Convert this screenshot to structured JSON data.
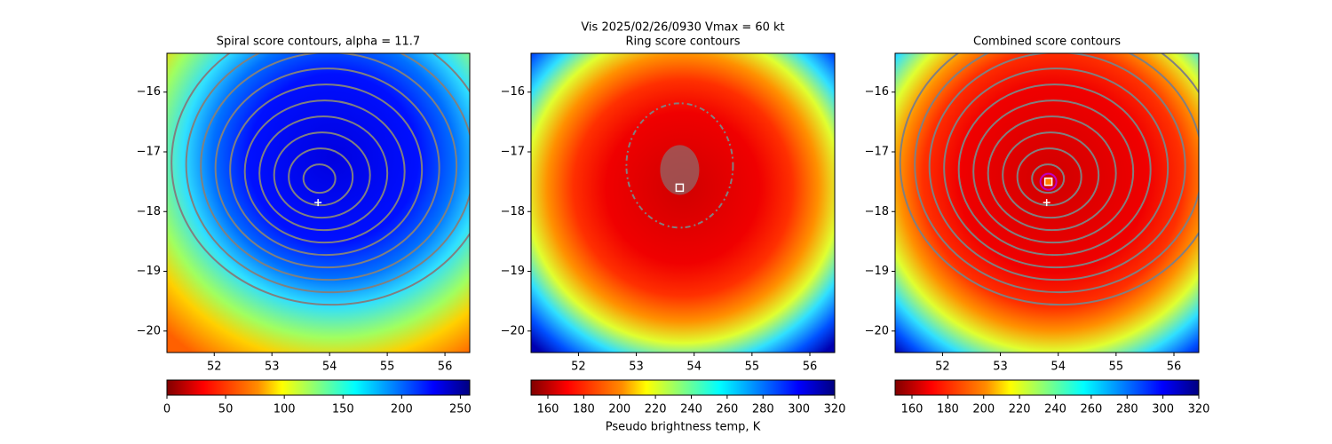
{
  "figure_title": "Vis  2025/02/26/0930    Vmax = 60 kt",
  "colorbar_label": "Pseudo brightness temp, K",
  "chart_data": [
    {
      "type": "image",
      "title": "Spiral score contours, alpha = 11.7",
      "xlim": [
        51.18,
        56.43
      ],
      "ylim": [
        -20.36,
        -15.35
      ],
      "xticks": [
        52,
        53,
        54,
        55,
        56
      ],
      "yticks": [
        {
          "value": -16,
          "label": "−16"
        },
        {
          "value": -17,
          "label": "−17"
        },
        {
          "value": -18,
          "label": "−18"
        },
        {
          "value": -19,
          "label": "−19"
        },
        {
          "value": -20,
          "label": "−20"
        }
      ],
      "cmap": "jet_r",
      "colorbar": {
        "lim": [
          0,
          258
        ],
        "ticks": [
          0,
          50,
          100,
          150,
          200,
          250
        ]
      },
      "markers": [
        {
          "x": 53.8,
          "y": -17.85,
          "marker": "plus",
          "color": "#ffffff"
        }
      ]
    },
    {
      "type": "image",
      "title": "Ring score contours",
      "xlim": [
        51.18,
        56.43
      ],
      "ylim": [
        -20.36,
        -15.35
      ],
      "xticks": [
        52,
        53,
        54,
        55,
        56
      ],
      "yticks": [
        {
          "value": -16,
          "label": "−16"
        },
        {
          "value": -17,
          "label": "−17"
        },
        {
          "value": -18,
          "label": "−18"
        },
        {
          "value": -19,
          "label": "−19"
        },
        {
          "value": -20,
          "label": "−20"
        }
      ],
      "cmap": "jet",
      "colorbar": {
        "lim": [
          150.6,
          320
        ],
        "ticks": [
          160,
          180,
          200,
          220,
          240,
          260,
          280,
          300,
          320
        ]
      },
      "markers": [
        {
          "x": 53.75,
          "y": -17.6,
          "marker": "square",
          "color": "#ffffff"
        }
      ]
    },
    {
      "type": "image",
      "title": "Combined score contours",
      "xlim": [
        51.18,
        56.43
      ],
      "ylim": [
        -20.36,
        -15.35
      ],
      "xticks": [
        52,
        53,
        54,
        55,
        56
      ],
      "yticks": [
        {
          "value": -16,
          "label": "−16"
        },
        {
          "value": -17,
          "label": "−17"
        },
        {
          "value": -18,
          "label": "−18"
        },
        {
          "value": -19,
          "label": "−19"
        },
        {
          "value": -20,
          "label": "−20"
        }
      ],
      "cmap": "jet",
      "colorbar": {
        "lim": [
          150.6,
          320
        ],
        "ticks": [
          160,
          180,
          200,
          220,
          240,
          260,
          280,
          300,
          320
        ]
      },
      "markers": [
        {
          "x": 53.83,
          "y": -17.5,
          "marker": "circle",
          "color": "#c000c0"
        },
        {
          "x": 53.83,
          "y": -17.5,
          "marker": "square",
          "color": "#ffffff"
        },
        {
          "x": 53.8,
          "y": -17.85,
          "marker": "plus",
          "color": "#ffffff"
        }
      ]
    }
  ]
}
